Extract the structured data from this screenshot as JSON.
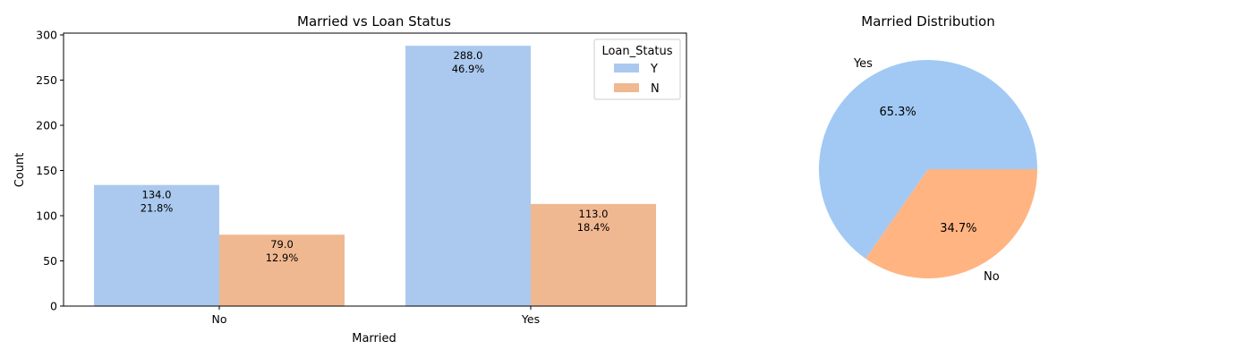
{
  "chart_data": [
    {
      "type": "bar",
      "title": "Married vs Loan Status",
      "xlabel": "Married",
      "ylabel": "Count",
      "categories": [
        "No",
        "Yes"
      ],
      "ylim": [
        0,
        302
      ],
      "yticks": [
        "0",
        "50",
        "100",
        "150",
        "200",
        "250",
        "300"
      ],
      "series": [
        {
          "name": "Y",
          "values": [
            134,
            288
          ],
          "color": "#abc9ee"
        },
        {
          "name": "N",
          "values": [
            79,
            113
          ],
          "color": "#f0b891"
        }
      ],
      "bar_labels": [
        [
          "134.0\n21.8%",
          "288.0\n46.9%"
        ],
        [
          "79.0\n12.9%",
          "113.0\n18.4%"
        ]
      ],
      "legend": {
        "title": "Loan_Status",
        "placement": "top-right"
      },
      "grid": false
    },
    {
      "type": "pie",
      "title": "Married Distribution",
      "labels": [
        "Yes",
        "No"
      ],
      "values": [
        65.3,
        34.7
      ],
      "pct_labels": [
        "65.3%",
        "34.7%"
      ],
      "colors": [
        "#a1c9f4",
        "#ffb482"
      ]
    }
  ]
}
